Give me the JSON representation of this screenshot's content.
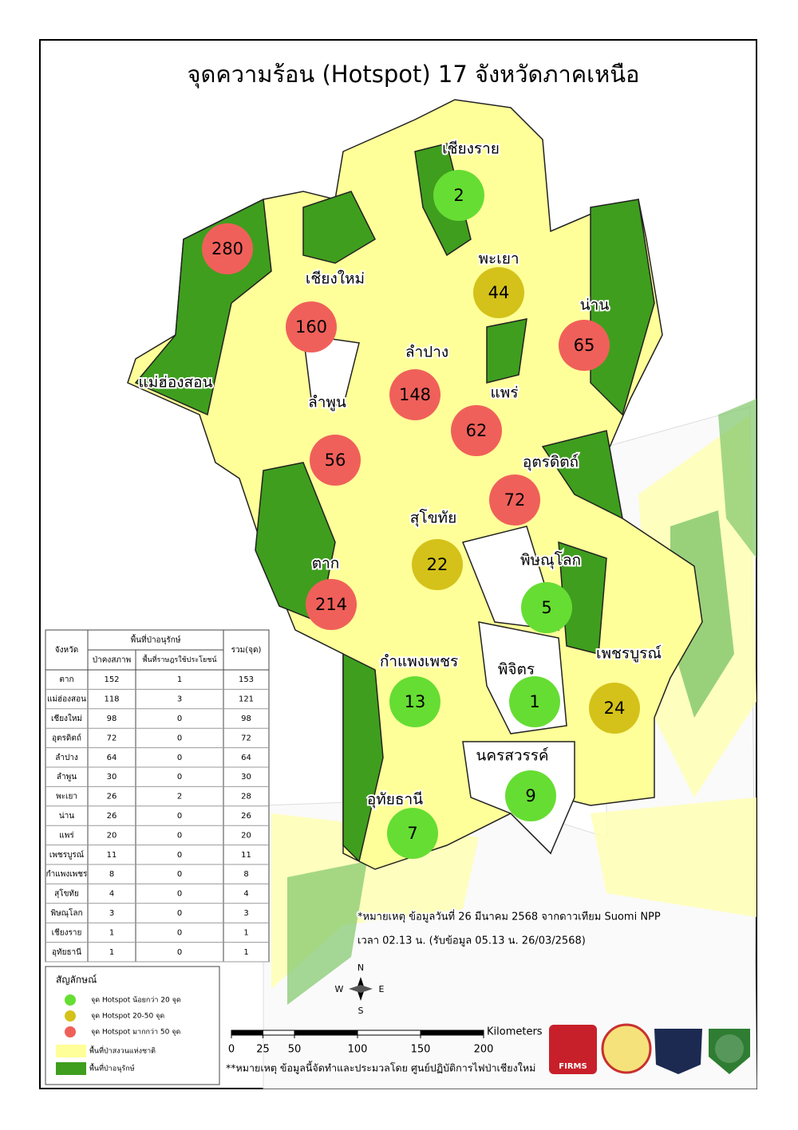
{
  "title": "จุดความร้อน (Hotspot) 17 จังหวัดภาคเหนือ",
  "provinces": [
    {
      "name": "เชียงราย",
      "hotspots": 2,
      "color": "#66dd33"
    },
    {
      "name": "แม่ฮ่องสอน",
      "hotspots": 280,
      "color": "#f0605a"
    },
    {
      "name": "เชียงใหม่",
      "hotspots": 160,
      "color": "#f0605a"
    },
    {
      "name": "ลำปาง",
      "hotspots": 148,
      "color": "#f0605a"
    },
    {
      "name": "ลำพูน",
      "hotspots": 56,
      "color": "#f0605a"
    },
    {
      "name": "พะเยา",
      "hotspots": 44,
      "color": "#d4c21a"
    },
    {
      "name": "น่าน",
      "hotspots": 65,
      "color": "#f0605a"
    },
    {
      "name": "แพร่",
      "hotspots": 62,
      "color": "#f0605a"
    },
    {
      "name": "อุตรดิตถ์",
      "hotspots": 72,
      "color": "#f0605a"
    },
    {
      "name": "สุโขทัย",
      "hotspots": 22,
      "color": "#d4c21a"
    },
    {
      "name": "ตาก",
      "hotspots": 214,
      "color": "#f0605a"
    },
    {
      "name": "พิษณุโลก",
      "hotspots": 5,
      "color": "#66dd33"
    },
    {
      "name": "กำแพงเพชร",
      "hotspots": 13,
      "color": "#66dd33"
    },
    {
      "name": "พิจิตร",
      "hotspots": 1,
      "color": "#66dd33"
    },
    {
      "name": "เพชรบูรณ์",
      "hotspots": 24,
      "color": "#d4c21a"
    },
    {
      "name": "นครสวรรค์",
      "hotspots": 9,
      "color": "#66dd33"
    },
    {
      "name": "อุทัยธานี",
      "hotspots": 7,
      "color": "#66dd33"
    }
  ],
  "table": {
    "header": {
      "province": "จังหวัด",
      "group": "พื้นที่ป่าอนุรักษ์",
      "col1": "ป่าคงสภาพ",
      "col2": "พื้นที่ราษฎรใช้ประโยชน์",
      "total": "รวม(จุด)"
    },
    "rows": [
      [
        "ตาก",
        152,
        1,
        153
      ],
      [
        "แม่ฮ่องสอน",
        118,
        3,
        121
      ],
      [
        "เชียงใหม่",
        98,
        0,
        98
      ],
      [
        "อุตรดิตถ์",
        72,
        0,
        72
      ],
      [
        "ลำปาง",
        64,
        0,
        64
      ],
      [
        "ลำพูน",
        30,
        0,
        30
      ],
      [
        "พะเยา",
        26,
        2,
        28
      ],
      [
        "น่าน",
        26,
        0,
        26
      ],
      [
        "แพร่",
        20,
        0,
        20
      ],
      [
        "เพชรบูรณ์",
        11,
        0,
        11
      ],
      [
        "กำแพงเพชร",
        8,
        0,
        8
      ],
      [
        "สุโขทัย",
        4,
        0,
        4
      ],
      [
        "พิษณุโลก",
        3,
        0,
        3
      ],
      [
        "เชียงราย",
        1,
        0,
        1
      ],
      [
        "อุทัยธานี",
        1,
        0,
        1
      ]
    ]
  },
  "legend": {
    "title": "สัญลักษณ์",
    "items": [
      {
        "label": "จุด Hotspot น้อยกว่า 20 จุด",
        "color": "#66dd33",
        "shape": "circle"
      },
      {
        "label": "จุด Hotspot 20-50 จุด",
        "color": "#d4c21a",
        "shape": "circle"
      },
      {
        "label": "จุด Hotspot มากกว่า 50 จุด",
        "color": "#f0605a",
        "shape": "circle"
      },
      {
        "label": "พื้นที่ป่าสงวนแห่งชาติ",
        "color": "#ffff99",
        "shape": "rect"
      },
      {
        "label": "พื้นที่ป่าอนุรักษ์",
        "color": "#3f9e1e",
        "shape": "rect"
      }
    ]
  },
  "notes": [
    "*หมายเหตุ ข้อมูลวันที่ 26 มีนาคม 2568 จากดาวเทียม Suomi NPP",
    "เวลา 02.13 น. (รับข้อมูล 05.13 น. 26/03/2568)",
    "**หมายเหตุ ข้อมูลนี้จัดทำและประมวลโดย ศูนย์ปฏิบัติการไฟป่าเชียงใหม่"
  ],
  "scale": {
    "ticks": [
      0,
      25,
      50,
      100,
      150,
      200
    ],
    "unit": "Kilometers"
  },
  "compass": {
    "n": "N",
    "w": "W",
    "e": "E",
    "s": "S"
  },
  "logo_text": "FIRMS"
}
